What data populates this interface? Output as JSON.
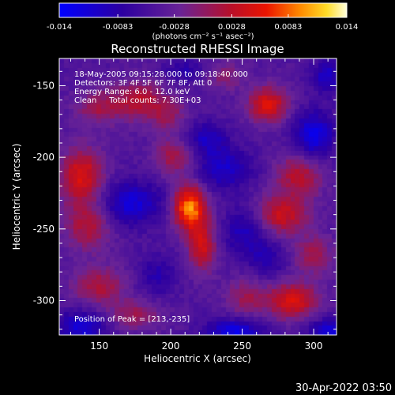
{
  "colorbar": {
    "ticks": [
      "-0.014",
      "-0.0083",
      "-0.0028",
      "0.0028",
      "0.0083",
      "0.014"
    ],
    "tick_values": [
      -0.014,
      -0.0083,
      -0.0028,
      0.0028,
      0.0083,
      0.014
    ],
    "unit_label": "(photons cm⁻² s⁻¹ asec⁻²)",
    "range": [
      -0.014,
      0.014
    ],
    "colormap": "blue-purple-red-yellow-white"
  },
  "chart_data": {
    "type": "heatmap",
    "title": "Reconstructed RHESSI Image",
    "xlabel": "Heliocentric X (arcsec)",
    "ylabel": "Heliocentric Y (arcsec)",
    "xlim": [
      122,
      316
    ],
    "ylim": [
      -324,
      -131
    ],
    "xticks": [
      150,
      200,
      250,
      300
    ],
    "yticks": [
      -150,
      -200,
      -250,
      -300
    ],
    "peak": [
      213,
      -235
    ],
    "blobs": [
      {
        "x": 213,
        "y": -235,
        "value": 0.014,
        "sx": 8,
        "sy": 11
      },
      {
        "x": 222,
        "y": -262,
        "value": 0.0085,
        "sx": 7,
        "sy": 13
      },
      {
        "x": 202,
        "y": -200,
        "value": 0.006,
        "sx": 10,
        "sy": 9
      },
      {
        "x": 138,
        "y": -213,
        "value": 0.0095,
        "sx": 11,
        "sy": 14
      },
      {
        "x": 142,
        "y": -248,
        "value": 0.0065,
        "sx": 12,
        "sy": 12
      },
      {
        "x": 150,
        "y": -290,
        "value": 0.0062,
        "sx": 14,
        "sy": 10
      },
      {
        "x": 178,
        "y": -160,
        "value": 0.0065,
        "sx": 12,
        "sy": 10
      },
      {
        "x": 150,
        "y": -165,
        "value": 0.0055,
        "sx": 12,
        "sy": 9
      },
      {
        "x": 198,
        "y": -170,
        "value": 0.0048,
        "sx": 9,
        "sy": 9
      },
      {
        "x": 268,
        "y": -163,
        "value": 0.0095,
        "sx": 10,
        "sy": 9
      },
      {
        "x": 290,
        "y": -212,
        "value": 0.0072,
        "sx": 12,
        "sy": 11
      },
      {
        "x": 278,
        "y": -240,
        "value": 0.0082,
        "sx": 13,
        "sy": 10
      },
      {
        "x": 300,
        "y": -268,
        "value": 0.0055,
        "sx": 10,
        "sy": 10
      },
      {
        "x": 285,
        "y": -300,
        "value": 0.0095,
        "sx": 13,
        "sy": 9
      },
      {
        "x": 252,
        "y": -298,
        "value": 0.005,
        "sx": 10,
        "sy": 10
      },
      {
        "x": 175,
        "y": -310,
        "value": 0.0052,
        "sx": 13,
        "sy": 7
      },
      {
        "x": 237,
        "y": -143,
        "value": 0.0042,
        "sx": 10,
        "sy": 7
      },
      {
        "x": 172,
        "y": -232,
        "value": -0.007,
        "sx": 16,
        "sy": 11
      },
      {
        "x": 238,
        "y": -208,
        "value": -0.006,
        "sx": 14,
        "sy": 10
      },
      {
        "x": 225,
        "y": -187,
        "value": -0.0055,
        "sx": 10,
        "sy": 8
      },
      {
        "x": 252,
        "y": -252,
        "value": -0.0055,
        "sx": 10,
        "sy": 12
      },
      {
        "x": 300,
        "y": -185,
        "value": -0.008,
        "sx": 10,
        "sy": 12
      },
      {
        "x": 138,
        "y": -318,
        "value": -0.007,
        "sx": 12,
        "sy": 8
      },
      {
        "x": 245,
        "y": -322,
        "value": -0.008,
        "sx": 14,
        "sy": 7
      },
      {
        "x": 310,
        "y": -322,
        "value": -0.007,
        "sx": 10,
        "sy": 7
      },
      {
        "x": 268,
        "y": -272,
        "value": -0.004,
        "sx": 9,
        "sy": 9
      },
      {
        "x": 190,
        "y": -282,
        "value": -0.004,
        "sx": 10,
        "sy": 10
      },
      {
        "x": 310,
        "y": -143,
        "value": -0.006,
        "sx": 8,
        "sy": 8
      },
      {
        "x": 210,
        "y": -140,
        "value": -0.004,
        "sx": 10,
        "sy": 6
      }
    ],
    "background": -0.0045,
    "annotations": [
      "18-May-2005 09:15:28.000 to 09:18:40.000",
      "Detectors: 3F 4F 5F 6F 7F 8F, Att 0",
      "Energy Range: 6.0 - 12.0 keV",
      "Clean     Total counts: 7.30E+03"
    ],
    "peak_label": "Position of Peak = [213,-235]"
  },
  "footer": {
    "timestamp": "30-Apr-2022 03:50"
  }
}
